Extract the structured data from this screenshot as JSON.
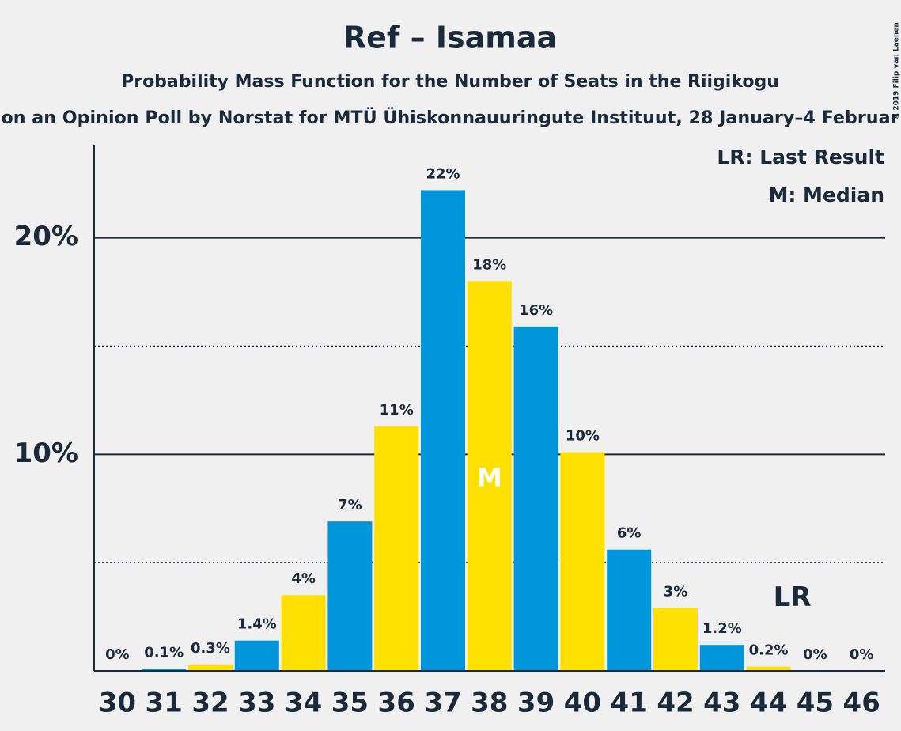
{
  "chart_data": {
    "type": "bar",
    "title": "Ref – Isamaa",
    "subtitle": "Probability Mass Function for the Number of Seats in the Riigikogu",
    "subtitle2": "on an Opinion Poll by Norstat for MTÜ Ühiskonnauuringute Instituut, 28 January–4 Februar",
    "copyright": "© 2019 Filip van Laenen",
    "categories": [
      "30",
      "31",
      "32",
      "33",
      "34",
      "35",
      "36",
      "37",
      "38",
      "39",
      "40",
      "41",
      "42",
      "43",
      "44",
      "45",
      "46"
    ],
    "values": [
      0,
      0.1,
      0.3,
      1.4,
      3.5,
      6.9,
      11.3,
      22.2,
      18.0,
      15.9,
      10.1,
      5.6,
      2.9,
      1.2,
      0.2,
      0,
      0
    ],
    "value_labels": [
      "0%",
      "0.1%",
      "0.3%",
      "1.4%",
      "4%",
      "7%",
      "11%",
      "22%",
      "18%",
      "16%",
      "10%",
      "6%",
      "3%",
      "1.2%",
      "0.2%",
      "0%",
      "0%"
    ],
    "colors": [
      "#0096db",
      "#0096db",
      "#ffe000",
      "#0096db",
      "#ffe000",
      "#0096db",
      "#ffe000",
      "#0096db",
      "#ffe000",
      "#0096db",
      "#ffe000",
      "#0096db",
      "#ffe000",
      "#0096db",
      "#ffe000",
      "#0096db",
      "#ffe000"
    ],
    "ylim": [
      0,
      24.3
    ],
    "yticks": [
      {
        "value": 10,
        "label": "10%"
      },
      {
        "value": 20,
        "label": "20%"
      }
    ],
    "minor_yticks": [
      5,
      15
    ],
    "annotations": [
      {
        "text": "M",
        "at": "38"
      },
      {
        "text": "LR",
        "at": "44"
      }
    ],
    "legend_notes": [
      "LR: Last Result",
      "M: Median"
    ]
  }
}
